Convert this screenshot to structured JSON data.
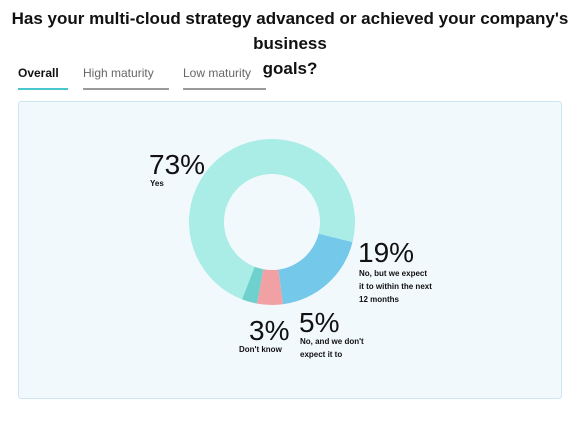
{
  "question": {
    "line1": "Has your multi-cloud strategy advanced or achieved your company's business",
    "line2": "goals?"
  },
  "tabs": [
    {
      "label": "Overall",
      "active": true
    },
    {
      "label": "High maturity",
      "active": false
    },
    {
      "label": "Low maturity",
      "active": false
    }
  ],
  "colors": {
    "accent": "#49c7cc",
    "panel_bg": "#f2f9fd",
    "panel_border": "#cfe6f3"
  },
  "chart_data": {
    "type": "pie",
    "subtype": "donut",
    "title": "",
    "slices": [
      {
        "value": 73,
        "value_label": "73%",
        "label_lines": [
          "Yes"
        ],
        "color": "#aaece6"
      },
      {
        "value": 19,
        "value_label": "19%",
        "label_lines": [
          "No, but we expect",
          "it to within the next",
          "12 months"
        ],
        "color": "#74c8ea"
      },
      {
        "value": 5,
        "value_label": "5%",
        "label_lines": [
          "No, and we don't",
          "expect it to"
        ],
        "color": "#f1a0a3"
      },
      {
        "value": 3,
        "value_label": "3%",
        "label_lines": [
          "Don't know"
        ],
        "color": "#6fd1cd"
      }
    ]
  }
}
